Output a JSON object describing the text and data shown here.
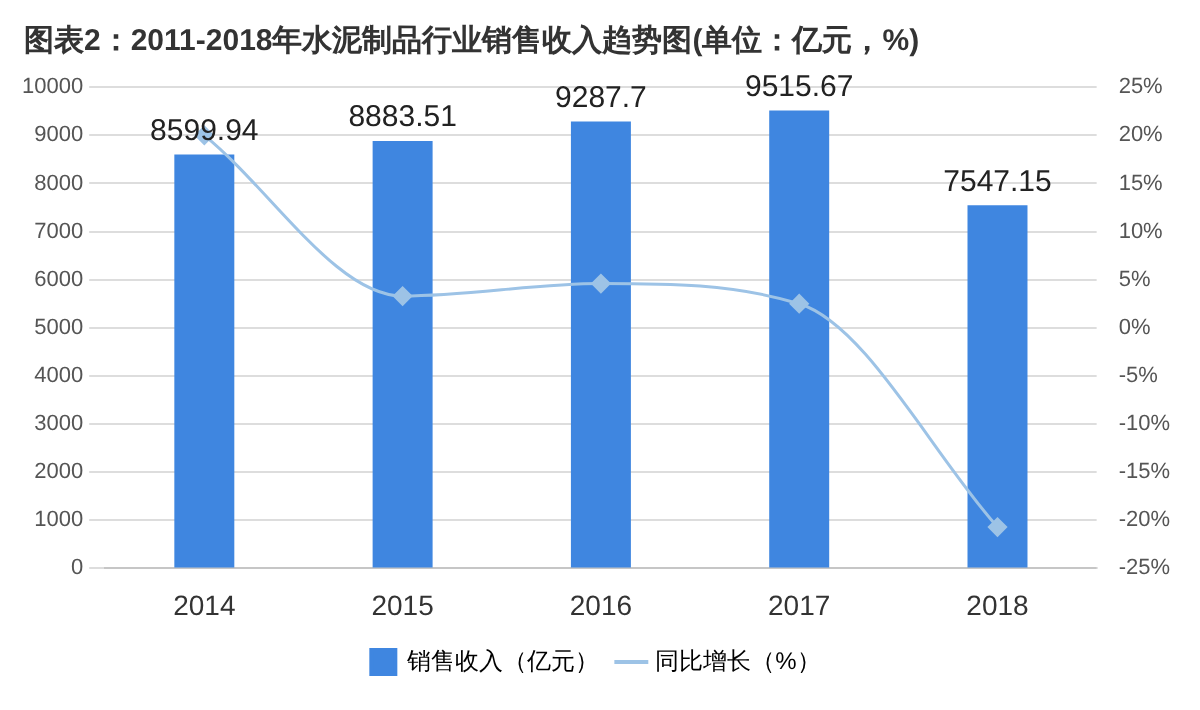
{
  "chart_data": {
    "type": "bar",
    "title": "图表2：2011-2018年水泥制品行业销售收入趋势图(单位：亿元，%)",
    "categories": [
      "2014",
      "2015",
      "2016",
      "2017",
      "2018"
    ],
    "series": [
      {
        "name": "销售收入（亿元）",
        "color": "#3f86e0",
        "values": [
          8599.94,
          8883.51,
          9287.7,
          9515.67,
          7547.15
        ],
        "value_labels": [
          "8599.94",
          "8883.51",
          "9287.7",
          "9515.67",
          "7547.15"
        ]
      },
      {
        "name": "同比增长（%）",
        "type": "line",
        "axis": "y2",
        "color": "#9dc3e6",
        "values": [
          20,
          3.3,
          4.6,
          2.5,
          -20.7
        ]
      }
    ],
    "ylim": [
      0,
      10000
    ],
    "yticks": [
      0,
      1000,
      2000,
      3000,
      4000,
      5000,
      6000,
      7000,
      8000,
      9000,
      10000
    ],
    "y2lim": [
      -25,
      25
    ],
    "y2ticks": [
      {
        "value": -25,
        "label": "-25%"
      },
      {
        "value": -20,
        "label": "-20%"
      },
      {
        "value": -15,
        "label": "-15%"
      },
      {
        "value": -10,
        "label": "-10%"
      },
      {
        "value": -5,
        "label": "-5%"
      },
      {
        "value": 0,
        "label": "0%"
      },
      {
        "value": 5,
        "label": "5%"
      },
      {
        "value": 10,
        "label": "10%"
      },
      {
        "value": 15,
        "label": "15%"
      },
      {
        "value": 20,
        "label": "20%"
      },
      {
        "value": 25,
        "label": "25%"
      }
    ],
    "grid": "y",
    "legend": "bottom",
    "marker": "diamond"
  }
}
